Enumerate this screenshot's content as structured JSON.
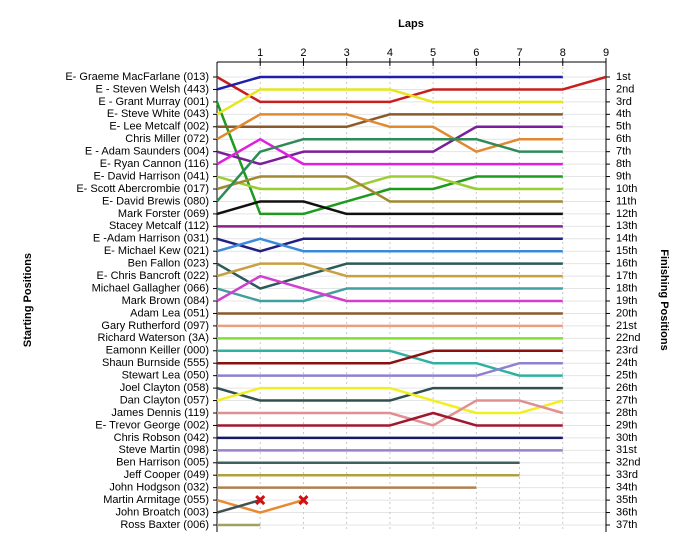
{
  "chart_data": {
    "type": "lap",
    "x_title": "Laps",
    "y_title": "Starting Positions",
    "y2_title": "Finishing Positions",
    "x": [
      0,
      1,
      2,
      3,
      4,
      5,
      6,
      7,
      8,
      9
    ],
    "xlim": [
      0,
      9
    ],
    "xticks": [
      1,
      2,
      3,
      4,
      5,
      6,
      7,
      8,
      9
    ],
    "ylim": [
      1,
      37
    ],
    "grid": true,
    "y2ticks": [
      {
        "value": 1,
        "label": "1st"
      },
      {
        "value": 2,
        "label": "2nd"
      },
      {
        "value": 3,
        "label": "3rd"
      },
      {
        "value": 4,
        "label": "4th"
      },
      {
        "value": 5,
        "label": "5th"
      },
      {
        "value": 6,
        "label": "6th"
      },
      {
        "value": 7,
        "label": "7th"
      },
      {
        "value": 8,
        "label": "8th"
      },
      {
        "value": 9,
        "label": "9th"
      },
      {
        "value": 10,
        "label": "10th"
      },
      {
        "value": 11,
        "label": "11th"
      },
      {
        "value": 12,
        "label": "12th"
      },
      {
        "value": 13,
        "label": "13th"
      },
      {
        "value": 14,
        "label": "14th"
      },
      {
        "value": 15,
        "label": "15th"
      },
      {
        "value": 16,
        "label": "16th"
      },
      {
        "value": 17,
        "label": "17th"
      },
      {
        "value": 18,
        "label": "18th"
      },
      {
        "value": 19,
        "label": "19th"
      },
      {
        "value": 20,
        "label": "20th"
      },
      {
        "value": 21,
        "label": "21st"
      },
      {
        "value": 22,
        "label": "22nd"
      },
      {
        "value": 23,
        "label": "23rd"
      },
      {
        "value": 24,
        "label": "24th"
      },
      {
        "value": 25,
        "label": "25th"
      },
      {
        "value": 26,
        "label": "26th"
      },
      {
        "value": 27,
        "label": "27th"
      },
      {
        "value": 28,
        "label": "28th"
      },
      {
        "value": 29,
        "label": "29th"
      },
      {
        "value": 30,
        "label": "30th"
      },
      {
        "value": 31,
        "label": "31st"
      },
      {
        "value": 32,
        "label": "32nd"
      },
      {
        "value": 33,
        "label": "33rd"
      },
      {
        "value": 34,
        "label": "34th"
      },
      {
        "value": 35,
        "label": "35th"
      },
      {
        "value": 36,
        "label": "36th"
      },
      {
        "value": 37,
        "label": "37th"
      }
    ],
    "series": [
      {
        "name": "E- Graeme MacFarlane (013)",
        "color": "#c81e1e",
        "values": [
          1,
          3,
          3,
          3,
          3,
          2,
          2,
          2,
          2,
          1
        ]
      },
      {
        "name": "E - Steven Welsh (443)",
        "color": "#1e1eaa",
        "values": [
          2,
          1,
          1,
          1,
          1,
          1,
          1,
          1,
          1,
          null
        ]
      },
      {
        "name": "E - Grant Murray (001)",
        "color": "#1e9a1e",
        "values": [
          3,
          12,
          12,
          11,
          10,
          10,
          9,
          9,
          9,
          null
        ]
      },
      {
        "name": "E- Steve White (043)",
        "color": "#e6e61e",
        "values": [
          4,
          2,
          2,
          2,
          2,
          3,
          3,
          3,
          3,
          null
        ]
      },
      {
        "name": "E- Lee Metcalf (002)",
        "color": "#8b5a2b",
        "values": [
          5,
          5,
          5,
          5,
          4,
          4,
          4,
          4,
          4,
          null
        ]
      },
      {
        "name": "Chris Miller (072)",
        "color": "#e08a30",
        "values": [
          6,
          4,
          4,
          4,
          5,
          5,
          7,
          6,
          6,
          null
        ]
      },
      {
        "name": "E - Adam Saunders (004)",
        "color": "#7a1e9a",
        "values": [
          7,
          8,
          7,
          7,
          7,
          7,
          5,
          5,
          5,
          null
        ]
      },
      {
        "name": "E- Ryan Cannon (116)",
        "color": "#e020e0",
        "values": [
          8,
          6,
          8,
          8,
          8,
          8,
          8,
          8,
          8,
          null
        ]
      },
      {
        "name": "E- David Harrison (041)",
        "color": "#9acd32",
        "values": [
          9,
          10,
          10,
          10,
          9,
          9,
          10,
          10,
          10,
          null
        ]
      },
      {
        "name": "E- Scott Abercrombie (017)",
        "color": "#a08a30",
        "values": [
          10,
          9,
          9,
          9,
          11,
          11,
          11,
          11,
          11,
          null
        ]
      },
      {
        "name": "E- David Brewis (080)",
        "color": "#2e8b57",
        "values": [
          11,
          7,
          6,
          6,
          6,
          6,
          6,
          7,
          7,
          null
        ]
      },
      {
        "name": "Mark Forster (069)",
        "color": "#101010",
        "values": [
          12,
          11,
          11,
          12,
          12,
          12,
          12,
          12,
          12,
          null
        ]
      },
      {
        "name": "Stacey Metcalf (112)",
        "color": "#8a2090",
        "values": [
          13,
          13,
          13,
          13,
          13,
          13,
          13,
          13,
          13,
          null
        ]
      },
      {
        "name": "E -Adam Harrison (031)",
        "color": "#202080",
        "values": [
          14,
          15,
          14,
          14,
          14,
          14,
          14,
          14,
          14,
          null
        ]
      },
      {
        "name": "E- Michael Kew (021)",
        "color": "#3a8ad8",
        "values": [
          15,
          14,
          15,
          15,
          15,
          15,
          15,
          15,
          15,
          null
        ]
      },
      {
        "name": "Ben Fallon (023)",
        "color": "#2a5a5a",
        "values": [
          16,
          18,
          17,
          16,
          16,
          16,
          16,
          16,
          16,
          null
        ]
      },
      {
        "name": "E- Chris Bancroft (022)",
        "color": "#c8a040",
        "values": [
          17,
          16,
          16,
          17,
          17,
          17,
          17,
          17,
          17,
          null
        ]
      },
      {
        "name": "Michael Gallagher (066)",
        "color": "#40a0a0",
        "values": [
          18,
          19,
          19,
          18,
          18,
          18,
          18,
          18,
          18,
          null
        ]
      },
      {
        "name": "Mark Brown (084)",
        "color": "#d040d0",
        "values": [
          19,
          17,
          18,
          19,
          19,
          19,
          19,
          19,
          19,
          null
        ]
      },
      {
        "name": "Adam Lea (051)",
        "color": "#8b5a2b",
        "values": [
          20,
          20,
          20,
          20,
          20,
          20,
          20,
          20,
          20,
          null
        ]
      },
      {
        "name": "Gary Rutherford (097)",
        "color": "#e8a080",
        "values": [
          21,
          21,
          21,
          21,
          21,
          21,
          21,
          21,
          21,
          null
        ]
      },
      {
        "name": "Richard Waterson (3A)",
        "color": "#80e030",
        "values": [
          22,
          22,
          22,
          22,
          22,
          22,
          22,
          22,
          22,
          null
        ]
      },
      {
        "name": "Eamonn Keiller (000)",
        "color": "#30b0a0",
        "values": [
          23,
          23,
          23,
          23,
          23,
          24,
          24,
          25,
          25,
          null
        ]
      },
      {
        "name": "Shaun Burnside (555)",
        "color": "#8a1010",
        "values": [
          24,
          24,
          24,
          24,
          24,
          23,
          23,
          23,
          23,
          null
        ]
      },
      {
        "name": "Stewart Lea (050)",
        "color": "#9080d0",
        "values": [
          25,
          25,
          25,
          25,
          25,
          25,
          25,
          24,
          24,
          null
        ]
      },
      {
        "name": "Joel Clayton (058)",
        "color": "#305050",
        "values": [
          26,
          27,
          27,
          27,
          27,
          26,
          26,
          26,
          26,
          null
        ]
      },
      {
        "name": "Dan Clayton (057)",
        "color": "#f0f020",
        "values": [
          27,
          26,
          26,
          26,
          26,
          27,
          28,
          28,
          27,
          null
        ]
      },
      {
        "name": "James Dennis (119)",
        "color": "#e09090",
        "values": [
          28,
          28,
          28,
          28,
          28,
          29,
          27,
          27,
          28,
          null
        ]
      },
      {
        "name": "E- Trevor George (002)",
        "color": "#a01830",
        "values": [
          29,
          29,
          29,
          29,
          29,
          28,
          29,
          29,
          29,
          null
        ]
      },
      {
        "name": "Chris Robson (042)",
        "color": "#18186a",
        "values": [
          30,
          30,
          30,
          30,
          30,
          30,
          30,
          30,
          30,
          null
        ]
      },
      {
        "name": "Steve Martin (098)",
        "color": "#9a80c8",
        "values": [
          31,
          31,
          31,
          31,
          31,
          31,
          31,
          31,
          31,
          null
        ]
      },
      {
        "name": "Ben Harrison (005)",
        "color": "#406060",
        "values": [
          32,
          32,
          32,
          32,
          32,
          32,
          32,
          32,
          null,
          null
        ]
      },
      {
        "name": "Jeff Cooper (049)",
        "color": "#b0a040",
        "values": [
          33,
          33,
          33,
          33,
          33,
          33,
          33,
          33,
          null,
          null
        ]
      },
      {
        "name": "John Hodgson (032)",
        "color": "#b08050",
        "values": [
          34,
          34,
          34,
          34,
          34,
          34,
          34,
          null,
          null,
          null
        ]
      },
      {
        "name": "Martin Armitage (055)",
        "color": "#e88a30",
        "values": [
          35,
          36,
          35,
          null,
          null,
          null,
          null,
          null,
          null,
          null
        ],
        "retired": true
      },
      {
        "name": "John Broatch (003)",
        "color": "#405050",
        "values": [
          36,
          35,
          null,
          null,
          null,
          null,
          null,
          null,
          null,
          null
        ],
        "retired": true
      },
      {
        "name": "Ross Baxter (006)",
        "color": "#a0a060",
        "values": [
          37,
          37,
          null,
          null,
          null,
          null,
          null,
          null,
          null,
          null
        ]
      }
    ]
  }
}
